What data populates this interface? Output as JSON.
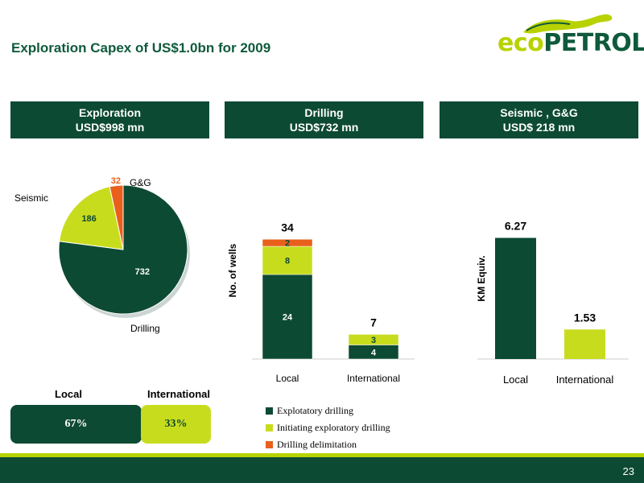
{
  "slide": {
    "title": "Exploration Capex of US$1.0bn for 2009",
    "page_number": "23"
  },
  "logo": {
    "part1": "eco",
    "part2": "PETROL"
  },
  "headers": {
    "exploration": {
      "line1": "Exploration",
      "line2": "USD$998 mn"
    },
    "drilling": {
      "line1": "Drilling",
      "line2": "USD$732 mn"
    },
    "seismic": {
      "line1": "Seismic , G&G",
      "line2": "USD$ 218 mn"
    }
  },
  "split": {
    "local_label": "Local",
    "international_label": "International",
    "local_value": "67%",
    "international_value": "33%"
  },
  "colors": {
    "dark_green": "#0d4a33",
    "lime": "#c8dc1e",
    "orange": "#e8601c"
  },
  "chart_data": [
    {
      "type": "pie",
      "labels": [
        "Drilling",
        "Seismic",
        "G&G"
      ],
      "values": [
        732,
        186,
        32
      ],
      "value_labels": [
        "732",
        "186",
        "32"
      ],
      "colors": [
        "#0d4a33",
        "#c8dc1e",
        "#e8601c"
      ]
    },
    {
      "type": "bar",
      "stacked": true,
      "categories": [
        "Local",
        "International"
      ],
      "ylabel": "No. of wells",
      "totals": [
        34,
        7
      ],
      "total_labels": [
        "34",
        "7"
      ],
      "series": [
        {
          "name": "Explotatory drilling",
          "values": [
            24,
            4
          ],
          "labels": [
            "24",
            "4"
          ],
          "color": "#0d4a33"
        },
        {
          "name": "Initiating exploratory drilling",
          "values": [
            8,
            3
          ],
          "labels": [
            "8",
            "3"
          ],
          "color": "#c8dc1e"
        },
        {
          "name": "Drilling delimitation",
          "values": [
            2,
            0
          ],
          "labels": [
            "2",
            ""
          ],
          "color": "#e8601c"
        }
      ],
      "ylim": [
        0,
        40
      ],
      "legend": "bottom"
    },
    {
      "type": "bar",
      "categories": [
        "Local",
        "International"
      ],
      "ylabel": "KM Equiv.",
      "values": [
        6.27,
        1.53
      ],
      "value_labels": [
        "6.27",
        "1.53"
      ],
      "colors": [
        "#0d4a33",
        "#c8dc1e"
      ],
      "ylim": [
        0,
        7.5
      ]
    }
  ]
}
